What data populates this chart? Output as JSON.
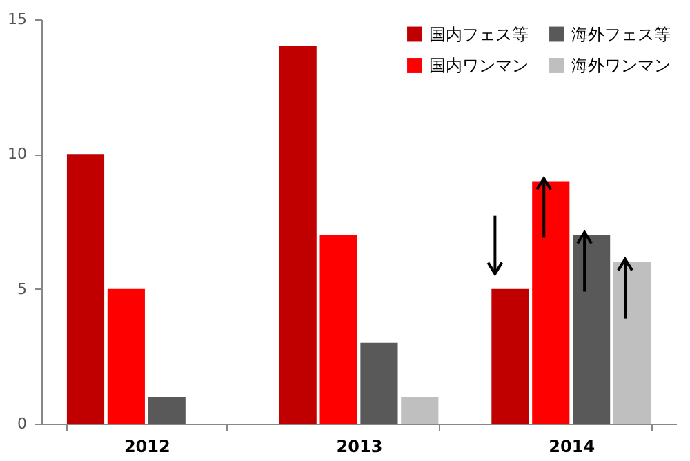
{
  "chart_data": {
    "type": "bar",
    "categories": [
      "2012",
      "2013",
      "2014"
    ],
    "series": [
      {
        "name": "国内フェス等",
        "color": "#c00000",
        "values": [
          10,
          14,
          5
        ]
      },
      {
        "name": "国内ワンマン",
        "color": "#ff0000",
        "values": [
          5,
          7,
          9
        ]
      },
      {
        "name": "海外フェス等",
        "color": "#595959",
        "values": [
          1,
          3,
          7
        ]
      },
      {
        "name": "海外ワンマン",
        "color": "#bfbfbf",
        "values": [
          null,
          1,
          6
        ]
      }
    ],
    "ylim": [
      0,
      15
    ],
    "yticks": [
      0,
      5,
      10,
      15
    ],
    "grid": false,
    "legend": "top right"
  }
}
